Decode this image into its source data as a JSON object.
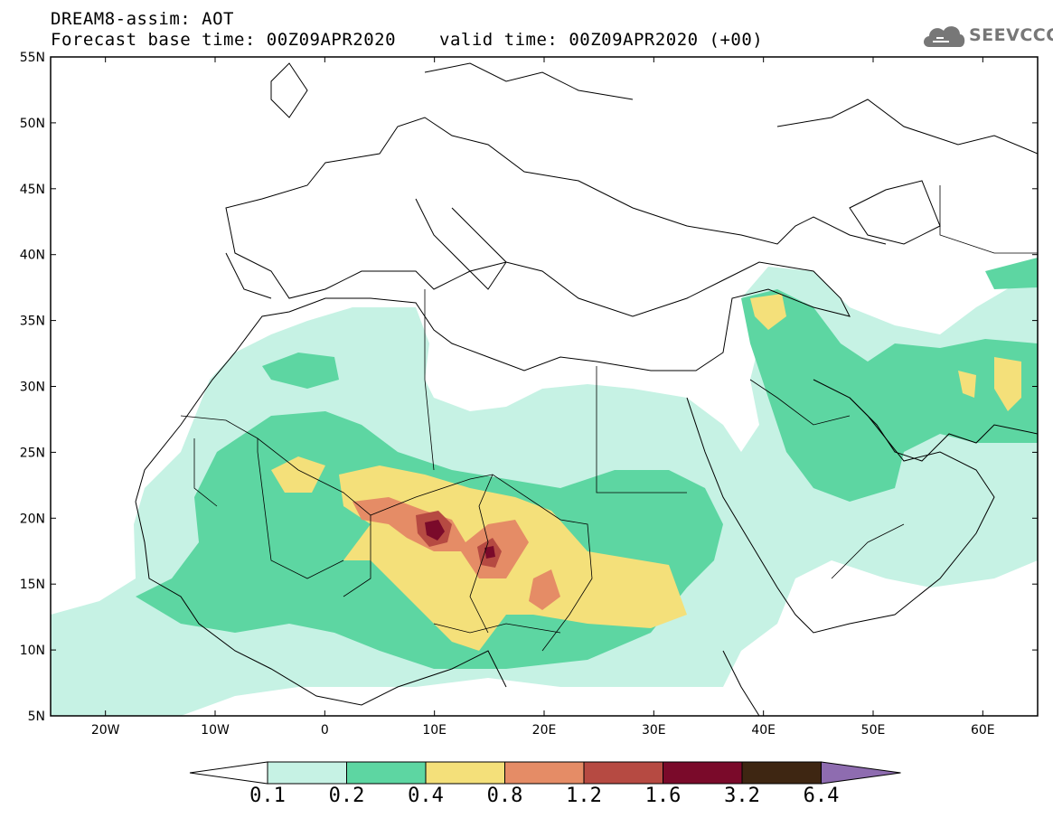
{
  "header": {
    "line1": "DREAM8-assim: AOT",
    "base_time": "Forecast base time: 00Z09APR2020",
    "valid_time": "valid time: 00Z09APR2020 (+00)"
  },
  "logo": {
    "text": "SEEVCCC",
    "icon": "cloud-icon",
    "color": "#777777"
  },
  "map_data": {
    "projection": "lat-lon",
    "lon_range": [
      -25,
      65
    ],
    "lat_range": [
      5,
      55
    ],
    "lat_ticks": [
      "55N",
      "50N",
      "45N",
      "40N",
      "35N",
      "30N",
      "25N",
      "20N",
      "15N",
      "10N",
      "5N"
    ],
    "lon_ticks": [
      "20W",
      "10W",
      "0",
      "10E",
      "20E",
      "30E",
      "40E",
      "50E",
      "60E"
    ]
  },
  "colorbar": {
    "labels": [
      "0.1",
      "0.2",
      "0.4",
      "0.8",
      "1.2",
      "1.6",
      "3.2",
      "6.4"
    ],
    "colors": [
      "#c6f2e4",
      "#5dd6a2",
      "#f4e07a",
      "#e58c66",
      "#b64a42",
      "#7a0a2a",
      "#3e2612",
      "#8e6cb0"
    ]
  }
}
